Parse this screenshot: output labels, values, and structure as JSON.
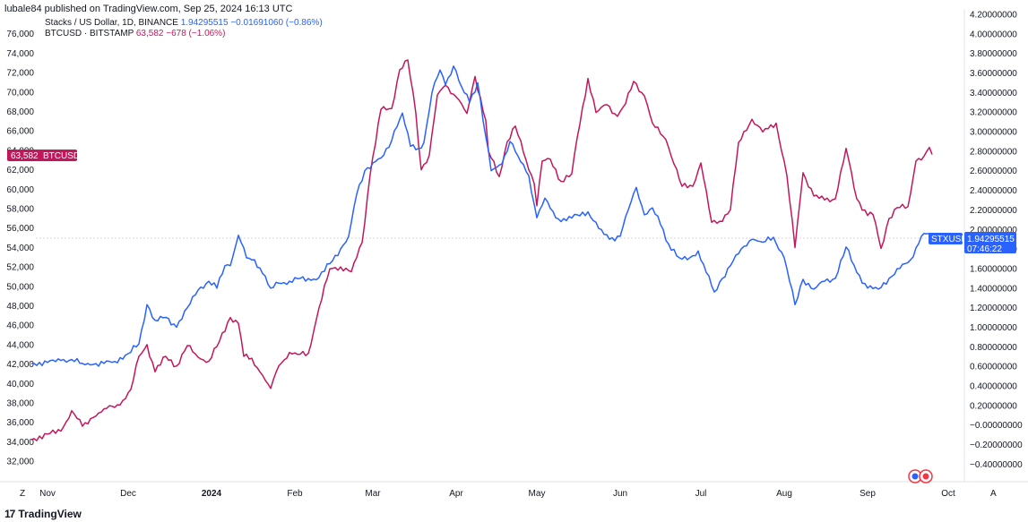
{
  "header": {
    "text": "lubale84 published on TradingView.com, Sep 25, 2024 16:13 UTC"
  },
  "legend": {
    "stx": {
      "symbol": "Stacks / US Dollar, 1D, BINANCE",
      "price": "1.94295515",
      "change": "−0.01691060 (−0.86%)"
    },
    "btc": {
      "symbol": "BTCUSD · BITSTAMP",
      "price": "63,582",
      "change": "−678 (−1.06%)"
    }
  },
  "tags": {
    "btc": {
      "value": "63,582",
      "label": "BTCUSD"
    },
    "stx": {
      "label": "STXUSD",
      "value": "1.94295515",
      "countdown": "07:46:22"
    }
  },
  "footer": {
    "brand": "TradingView",
    "logo": "17"
  },
  "axis_buttons": {
    "left": "Z",
    "right": "A"
  },
  "colors": {
    "btc": "#c2185b",
    "stx": "#2962ff",
    "background": "#ffffff"
  },
  "chart_data": {
    "type": "line",
    "x_labels": [
      "Nov",
      "Dec",
      "2024",
      "Feb",
      "Mar",
      "Apr",
      "May",
      "Jun",
      "Jul",
      "Aug",
      "Sep",
      "Oct"
    ],
    "left_axis": {
      "series": "BTCUSD",
      "range": [
        31000,
        78000
      ],
      "ticks": [
        "32,000",
        "34,000",
        "36,000",
        "38,000",
        "40,000",
        "42,000",
        "44,000",
        "46,000",
        "48,000",
        "50,000",
        "52,000",
        "54,000",
        "56,000",
        "58,000",
        "60,000",
        "62,000",
        "64,000",
        "66,000",
        "68,000",
        "70,000",
        "72,000",
        "74,000",
        "76,000"
      ]
    },
    "right_axis": {
      "series": "STXUSD",
      "range": [
        -0.47,
        4.2
      ],
      "ticks": [
        "4.20000000",
        "4.00000000",
        "3.80000000",
        "3.60000000",
        "3.40000000",
        "3.20000000",
        "3.00000000",
        "2.80000000",
        "2.60000000",
        "2.40000000",
        "2.20000000",
        "2.00000000",
        "1.80000000",
        "1.60000000",
        "1.40000000",
        "1.20000000",
        "1.00000000",
        "0.80000000",
        "0.60000000",
        "0.40000000",
        "0.20000000",
        "−0.00000000",
        "−0.20000000",
        "−0.40000000"
      ]
    },
    "series": [
      {
        "name": "BTCUSD",
        "axis": "left",
        "color": "#c2185b",
        "points": [
          [
            "2023-10-26",
            34200
          ],
          [
            "2023-11-01",
            34800
          ],
          [
            "2023-11-06",
            35100
          ],
          [
            "2023-11-10",
            37200
          ],
          [
            "2023-11-14",
            35600
          ],
          [
            "2023-11-18",
            36500
          ],
          [
            "2023-11-22",
            37400
          ],
          [
            "2023-11-28",
            37800
          ],
          [
            "2023-12-02",
            39400
          ],
          [
            "2023-12-05",
            42800
          ],
          [
            "2023-12-08",
            44000
          ],
          [
            "2023-12-11",
            41200
          ],
          [
            "2023-12-15",
            42800
          ],
          [
            "2023-12-19",
            41800
          ],
          [
            "2023-12-23",
            43900
          ],
          [
            "2023-12-27",
            42700
          ],
          [
            "2023-12-31",
            42300
          ],
          [
            "2024-01-03",
            43800
          ],
          [
            "2024-01-08",
            46800
          ],
          [
            "2024-01-11",
            46200
          ],
          [
            "2024-01-13",
            42800
          ],
          [
            "2024-01-16",
            42600
          ],
          [
            "2024-01-19",
            41200
          ],
          [
            "2024-01-23",
            39500
          ],
          [
            "2024-01-26",
            41800
          ],
          [
            "2024-01-30",
            43200
          ],
          [
            "2024-02-02",
            43000
          ],
          [
            "2024-02-06",
            43100
          ],
          [
            "2024-02-10",
            47800
          ],
          [
            "2024-02-14",
            51800
          ],
          [
            "2024-02-18",
            52000
          ],
          [
            "2024-02-22",
            51500
          ],
          [
            "2024-02-26",
            54500
          ],
          [
            "2024-02-29",
            61500
          ],
          [
            "2024-03-04",
            68200
          ],
          [
            "2024-03-08",
            68300
          ],
          [
            "2024-03-11",
            72300
          ],
          [
            "2024-03-14",
            73300
          ],
          [
            "2024-03-17",
            67800
          ],
          [
            "2024-03-19",
            62000
          ],
          [
            "2024-03-22",
            63500
          ],
          [
            "2024-03-25",
            69700
          ],
          [
            "2024-03-28",
            70700
          ],
          [
            "2024-04-01",
            69500
          ],
          [
            "2024-04-05",
            67800
          ],
          [
            "2024-04-08",
            71600
          ],
          [
            "2024-04-12",
            67100
          ],
          [
            "2024-04-13",
            63900
          ],
          [
            "2024-04-17",
            61300
          ],
          [
            "2024-04-20",
            64900
          ],
          [
            "2024-04-23",
            66500
          ],
          [
            "2024-04-26",
            63800
          ],
          [
            "2024-04-30",
            60600
          ],
          [
            "2024-05-01",
            58300
          ],
          [
            "2024-05-03",
            62900
          ],
          [
            "2024-05-06",
            63100
          ],
          [
            "2024-05-10",
            60800
          ],
          [
            "2024-05-14",
            61600
          ],
          [
            "2024-05-16",
            65300
          ],
          [
            "2024-05-20",
            71400
          ],
          [
            "2024-05-23",
            67900
          ],
          [
            "2024-05-27",
            68700
          ],
          [
            "2024-05-31",
            67500
          ],
          [
            "2024-06-03",
            68800
          ],
          [
            "2024-06-06",
            71100
          ],
          [
            "2024-06-10",
            69600
          ],
          [
            "2024-06-13",
            66800
          ],
          [
            "2024-06-18",
            65100
          ],
          [
            "2024-06-24",
            60300
          ],
          [
            "2024-06-28",
            60300
          ],
          [
            "2024-07-01",
            62700
          ],
          [
            "2024-07-05",
            56600
          ],
          [
            "2024-07-08",
            56700
          ],
          [
            "2024-07-12",
            57900
          ],
          [
            "2024-07-15",
            64800
          ],
          [
            "2024-07-20",
            67200
          ],
          [
            "2024-07-24",
            65900
          ],
          [
            "2024-07-29",
            66800
          ],
          [
            "2024-08-02",
            61400
          ],
          [
            "2024-08-05",
            54000
          ],
          [
            "2024-08-08",
            61700
          ],
          [
            "2024-08-12",
            59300
          ],
          [
            "2024-08-16",
            58900
          ],
          [
            "2024-08-20",
            59000
          ],
          [
            "2024-08-24",
            64200
          ],
          [
            "2024-08-28",
            59000
          ],
          [
            "2024-09-01",
            57300
          ],
          [
            "2024-09-03",
            57400
          ],
          [
            "2024-09-06",
            53900
          ],
          [
            "2024-09-09",
            57000
          ],
          [
            "2024-09-12",
            58100
          ],
          [
            "2024-09-16",
            58200
          ],
          [
            "2024-09-19",
            62900
          ],
          [
            "2024-09-22",
            63400
          ],
          [
            "2024-09-24",
            64300
          ],
          [
            "2024-09-25",
            63582
          ]
        ]
      },
      {
        "name": "STXUSD",
        "axis": "right",
        "color": "#2962ff",
        "points": [
          [
            "2023-10-26",
            0.63
          ],
          [
            "2023-11-01",
            0.64
          ],
          [
            "2023-11-06",
            0.66
          ],
          [
            "2023-11-10",
            0.67
          ],
          [
            "2023-11-14",
            0.63
          ],
          [
            "2023-11-18",
            0.62
          ],
          [
            "2023-11-22",
            0.63
          ],
          [
            "2023-11-26",
            0.65
          ],
          [
            "2023-12-01",
            0.73
          ],
          [
            "2023-12-05",
            0.83
          ],
          [
            "2023-12-08",
            1.23
          ],
          [
            "2023-12-11",
            1.07
          ],
          [
            "2023-12-15",
            1.1
          ],
          [
            "2023-12-19",
            1.0
          ],
          [
            "2023-12-23",
            1.2
          ],
          [
            "2023-12-27",
            1.38
          ],
          [
            "2023-12-31",
            1.47
          ],
          [
            "2024-01-03",
            1.4
          ],
          [
            "2024-01-06",
            1.63
          ],
          [
            "2024-01-08",
            1.63
          ],
          [
            "2024-01-11",
            1.94
          ],
          [
            "2024-01-14",
            1.71
          ],
          [
            "2024-01-17",
            1.69
          ],
          [
            "2024-01-20",
            1.55
          ],
          [
            "2024-01-23",
            1.4
          ],
          [
            "2024-01-26",
            1.45
          ],
          [
            "2024-01-30",
            1.47
          ],
          [
            "2024-02-03",
            1.5
          ],
          [
            "2024-02-07",
            1.48
          ],
          [
            "2024-02-10",
            1.51
          ],
          [
            "2024-02-14",
            1.65
          ],
          [
            "2024-02-18",
            1.8
          ],
          [
            "2024-02-21",
            1.93
          ],
          [
            "2024-02-24",
            2.36
          ],
          [
            "2024-02-27",
            2.6
          ],
          [
            "2024-03-01",
            2.68
          ],
          [
            "2024-03-04",
            2.73
          ],
          [
            "2024-03-07",
            2.84
          ],
          [
            "2024-03-09",
            3.01
          ],
          [
            "2024-03-12",
            3.19
          ],
          [
            "2024-03-15",
            2.85
          ],
          [
            "2024-03-18",
            2.83
          ],
          [
            "2024-03-20",
            2.89
          ],
          [
            "2024-03-23",
            3.4
          ],
          [
            "2024-03-26",
            3.63
          ],
          [
            "2024-03-28",
            3.48
          ],
          [
            "2024-03-31",
            3.67
          ],
          [
            "2024-04-03",
            3.46
          ],
          [
            "2024-04-06",
            3.3
          ],
          [
            "2024-04-09",
            3.5
          ],
          [
            "2024-04-12",
            2.95
          ],
          [
            "2024-04-14",
            2.6
          ],
          [
            "2024-04-18",
            2.67
          ],
          [
            "2024-04-21",
            2.9
          ],
          [
            "2024-04-24",
            2.75
          ],
          [
            "2024-04-28",
            2.55
          ],
          [
            "2024-05-01",
            2.12
          ],
          [
            "2024-05-04",
            2.32
          ],
          [
            "2024-05-08",
            2.12
          ],
          [
            "2024-05-12",
            2.09
          ],
          [
            "2024-05-16",
            2.15
          ],
          [
            "2024-05-20",
            2.18
          ],
          [
            "2024-05-24",
            2.01
          ],
          [
            "2024-05-28",
            1.9
          ],
          [
            "2024-06-01",
            1.93
          ],
          [
            "2024-06-04",
            2.2
          ],
          [
            "2024-06-07",
            2.43
          ],
          [
            "2024-06-10",
            2.15
          ],
          [
            "2024-06-13",
            2.22
          ],
          [
            "2024-06-16",
            2.05
          ],
          [
            "2024-06-19",
            1.85
          ],
          [
            "2024-06-23",
            1.71
          ],
          [
            "2024-06-26",
            1.69
          ],
          [
            "2024-06-30",
            1.78
          ],
          [
            "2024-07-03",
            1.56
          ],
          [
            "2024-07-06",
            1.36
          ],
          [
            "2024-07-09",
            1.5
          ],
          [
            "2024-07-12",
            1.63
          ],
          [
            "2024-07-16",
            1.8
          ],
          [
            "2024-07-20",
            1.9
          ],
          [
            "2024-07-24",
            1.87
          ],
          [
            "2024-07-28",
            1.92
          ],
          [
            "2024-08-01",
            1.71
          ],
          [
            "2024-08-05",
            1.23
          ],
          [
            "2024-08-08",
            1.49
          ],
          [
            "2024-08-12",
            1.39
          ],
          [
            "2024-08-16",
            1.47
          ],
          [
            "2024-08-20",
            1.5
          ],
          [
            "2024-08-24",
            1.82
          ],
          [
            "2024-08-28",
            1.56
          ],
          [
            "2024-09-01",
            1.4
          ],
          [
            "2024-09-05",
            1.39
          ],
          [
            "2024-09-09",
            1.5
          ],
          [
            "2024-09-13",
            1.6
          ],
          [
            "2024-09-17",
            1.69
          ],
          [
            "2024-09-21",
            1.93
          ],
          [
            "2024-09-24",
            1.96
          ],
          [
            "2024-09-25",
            1.94
          ]
        ]
      }
    ]
  }
}
